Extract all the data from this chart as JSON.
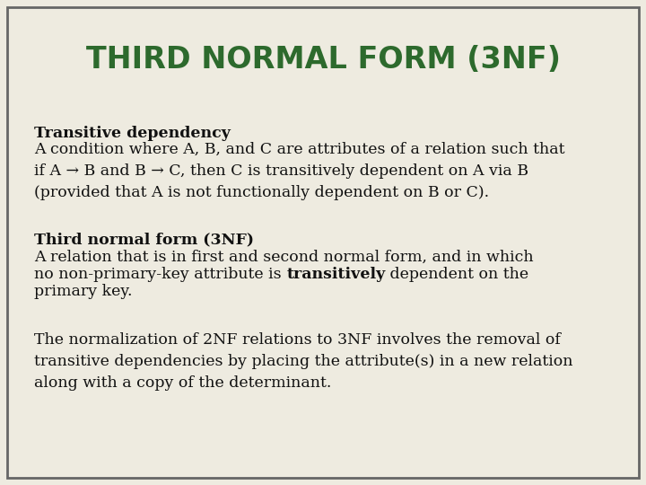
{
  "title": "THIRD NORMAL FORM (3NF)",
  "title_color": "#2d6a2d",
  "background_color": "#eeebe0",
  "border_color": "#666666",
  "text_color": "#111111",
  "title_fontsize": 24,
  "body_fontsize": 12.5,
  "section1_heading": "Transitive dependency",
  "section1_body": "A condition where A, B, and C are attributes of a relation such that\nif A → B and B → C, then C is transitively dependent on A via B\n(provided that A is not functionally dependent on B or C).",
  "section2_heading": "Third normal form (3NF)",
  "section2_line1": "A relation that is in first and second normal form, and in which",
  "section2_line2_pre": "no non-primary-key attribute is ",
  "section2_line2_bold": "transitively",
  "section2_line2_post": " dependent on the",
  "section2_line3": "primary key.",
  "section3_body": "The normalization of 2NF relations to 3NF involves the removal of\ntransitive dependencies by placing the attribute(s) in a new relation\nalong with a copy of the determinant."
}
